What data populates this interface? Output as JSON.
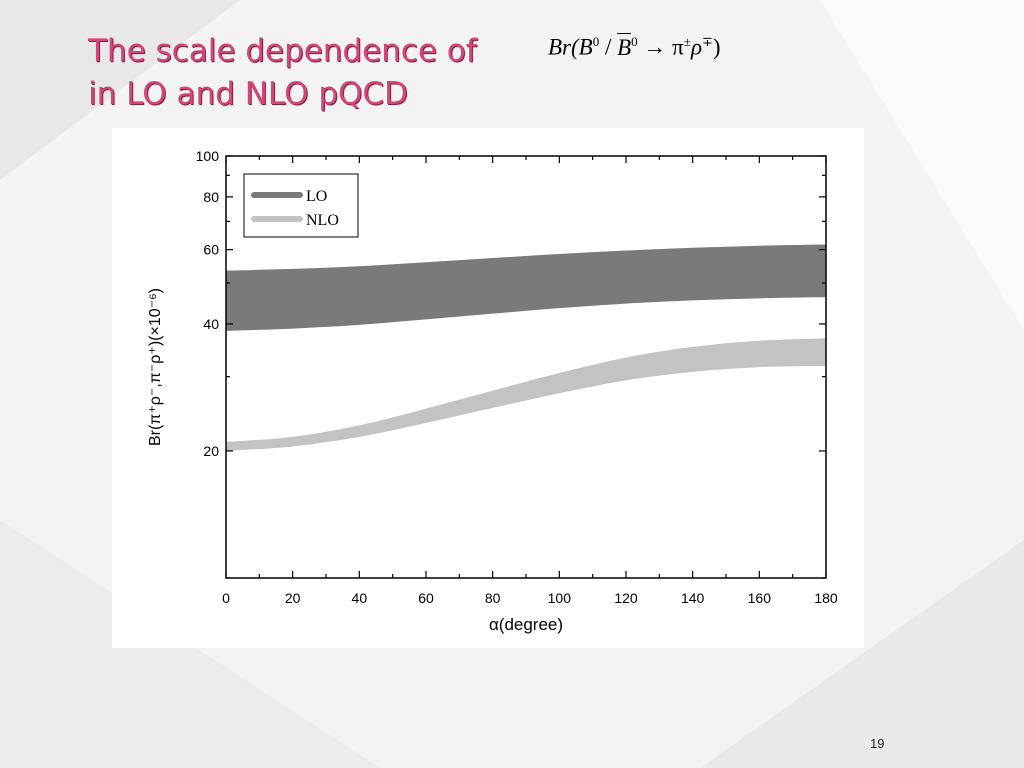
{
  "slide": {
    "title_line1": "The scale  dependence of",
    "title_line2": "in LO and NLO pQCD",
    "formula": {
      "prefix": "Br(B",
      "sup0": "0",
      "slash": " / ",
      "b_bar": "B",
      "sup0bar": "0",
      "arrow": " → π",
      "pm": "±",
      "rho": "ρ",
      "mp": "∓",
      "close": ")"
    },
    "page_number": "19",
    "title_color": "#d6457a"
  },
  "chart_data": {
    "type": "area",
    "xlabel": "α(degree)",
    "ylabel": "Br(π⁺ρ⁻,π⁻ρ⁺)(×10⁻⁶)",
    "xlim": [
      0,
      180
    ],
    "ylim": [
      10,
      100
    ],
    "y_scale": "log",
    "x_ticks": [
      0,
      20,
      40,
      60,
      80,
      100,
      120,
      140,
      160,
      180
    ],
    "y_ticks": [
      20,
      40,
      60,
      80,
      100
    ],
    "grid": false,
    "legend_placement": "top-left",
    "x": [
      0,
      20,
      40,
      60,
      80,
      100,
      120,
      140,
      160,
      180
    ],
    "series": [
      {
        "name": "LO",
        "color": "#7a7a7a",
        "lower": [
          38.5,
          39,
          39.8,
          41,
          42.3,
          43.6,
          44.7,
          45.5,
          46,
          46.3
        ],
        "upper": [
          53.5,
          54,
          54.8,
          56,
          57.3,
          58.6,
          59.7,
          60.6,
          61.3,
          61.7
        ]
      },
      {
        "name": "NLO",
        "color": "#c3c3c3",
        "lower": [
          20,
          20.5,
          21.6,
          23.3,
          25.3,
          27.4,
          29.4,
          30.8,
          31.6,
          31.8
        ],
        "upper": [
          21,
          21.6,
          23,
          25.2,
          27.8,
          30.6,
          33.3,
          35.3,
          36.5,
          37
        ]
      }
    ]
  }
}
